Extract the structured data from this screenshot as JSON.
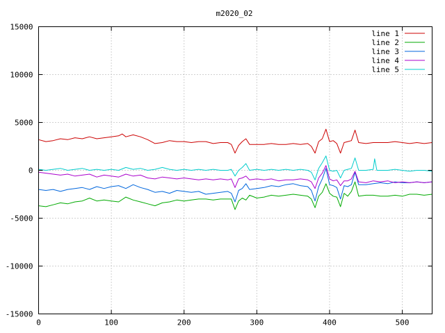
{
  "chart_data": {
    "type": "line",
    "title": "m2020_02",
    "xlabel": "",
    "ylabel": "",
    "xlim": [
      0,
      541
    ],
    "ylim": [
      -15000,
      15000
    ],
    "grid": true,
    "legend_position": "top-right",
    "x_ticks": [
      0,
      100,
      200,
      300,
      400,
      500
    ],
    "y_ticks": [
      -15000,
      -10000,
      -5000,
      0,
      5000,
      10000,
      15000
    ],
    "x_tick_labels": [
      "0",
      "100",
      "200",
      "300",
      "400",
      "500"
    ],
    "y_tick_labels": [
      "-15000",
      "-10000",
      "-5000",
      "0",
      "5000",
      "10000",
      "15000"
    ],
    "series": [
      {
        "name": "line 1",
        "color": "#cc0000",
        "x": [
          0,
          10,
          20,
          30,
          40,
          50,
          60,
          70,
          80,
          90,
          100,
          110,
          115,
          120,
          130,
          140,
          150,
          160,
          170,
          180,
          190,
          200,
          210,
          220,
          230,
          240,
          250,
          260,
          265,
          270,
          275,
          280,
          285,
          290,
          300,
          310,
          320,
          330,
          340,
          350,
          360,
          370,
          375,
          380,
          385,
          390,
          395,
          400,
          405,
          410,
          415,
          420,
          425,
          430,
          435,
          440,
          450,
          460,
          470,
          480,
          490,
          500,
          510,
          520,
          530,
          541
        ],
        "values": [
          3200,
          3000,
          3100,
          3300,
          3200,
          3400,
          3300,
          3500,
          3300,
          3400,
          3500,
          3600,
          3800,
          3500,
          3700,
          3500,
          3200,
          2800,
          2900,
          3100,
          3000,
          3000,
          2900,
          3000,
          3000,
          2800,
          2900,
          2900,
          2700,
          1800,
          2600,
          3000,
          3300,
          2700,
          2700,
          2700,
          2800,
          2700,
          2700,
          2800,
          2700,
          2800,
          2500,
          1800,
          3000,
          3300,
          4300,
          3000,
          3100,
          2800,
          1800,
          2900,
          3000,
          3100,
          4200,
          2900,
          2800,
          2900,
          2900,
          2900,
          3000,
          2900,
          2800,
          2900,
          2800,
          2900
        ]
      },
      {
        "name": "line 2",
        "color": "#00aa00",
        "x": [
          0,
          10,
          20,
          30,
          40,
          50,
          60,
          70,
          80,
          90,
          100,
          110,
          120,
          130,
          140,
          150,
          160,
          170,
          180,
          190,
          200,
          210,
          220,
          230,
          240,
          250,
          260,
          265,
          270,
          275,
          280,
          285,
          290,
          300,
          310,
          320,
          330,
          340,
          350,
          360,
          370,
          375,
          380,
          385,
          390,
          395,
          400,
          405,
          410,
          415,
          420,
          425,
          430,
          435,
          440,
          450,
          460,
          470,
          480,
          490,
          500,
          510,
          520,
          530,
          541
        ],
        "values": [
          -3700,
          -3800,
          -3600,
          -3400,
          -3500,
          -3300,
          -3200,
          -2900,
          -3200,
          -3100,
          -3200,
          -3300,
          -2800,
          -3100,
          -3300,
          -3500,
          -3700,
          -3400,
          -3300,
          -3100,
          -3200,
          -3100,
          -3000,
          -3000,
          -3100,
          -3000,
          -3000,
          -3000,
          -4100,
          -3200,
          -2900,
          -3100,
          -2600,
          -2900,
          -2800,
          -2600,
          -2700,
          -2600,
          -2500,
          -2600,
          -2700,
          -3000,
          -3900,
          -2700,
          -2300,
          -1400,
          -2400,
          -2700,
          -2800,
          -3800,
          -2400,
          -2700,
          -2200,
          -1200,
          -2700,
          -2600,
          -2600,
          -2700,
          -2700,
          -2600,
          -2700,
          -2500,
          -2500,
          -2600,
          -2500
        ]
      },
      {
        "name": "line 3",
        "color": "#0066dd",
        "x": [
          0,
          10,
          20,
          30,
          40,
          50,
          60,
          70,
          80,
          90,
          100,
          110,
          120,
          130,
          140,
          150,
          160,
          170,
          180,
          190,
          200,
          210,
          220,
          230,
          240,
          250,
          260,
          265,
          270,
          275,
          280,
          285,
          290,
          300,
          310,
          320,
          330,
          340,
          350,
          360,
          370,
          375,
          380,
          385,
          390,
          395,
          400,
          405,
          410,
          415,
          420,
          425,
          430,
          435,
          440,
          450,
          460,
          470,
          480,
          490,
          500,
          510,
          520,
          530,
          541
        ],
        "values": [
          -2000,
          -2100,
          -2000,
          -2200,
          -2000,
          -1900,
          -1800,
          -2000,
          -1700,
          -1900,
          -1700,
          -1600,
          -1900,
          -1500,
          -1800,
          -2000,
          -2300,
          -2200,
          -2400,
          -2100,
          -2200,
          -2300,
          -2200,
          -2500,
          -2400,
          -2300,
          -2200,
          -2400,
          -3300,
          -2100,
          -1900,
          -1400,
          -2000,
          -1900,
          -1800,
          -1600,
          -1700,
          -1500,
          -1400,
          -1600,
          -1700,
          -2100,
          -3200,
          -1700,
          -900,
          200,
          -1500,
          -1600,
          -1800,
          -3000,
          -1600,
          -1700,
          -1500,
          -200,
          -1500,
          -1500,
          -1400,
          -1300,
          -1400,
          -1200,
          -1300,
          -1300,
          -1200,
          -1300,
          -1200
        ]
      },
      {
        "name": "line 4",
        "color": "#aa00cc",
        "x": [
          0,
          10,
          20,
          30,
          40,
          50,
          60,
          70,
          80,
          90,
          100,
          110,
          120,
          130,
          140,
          150,
          160,
          170,
          180,
          190,
          200,
          210,
          220,
          230,
          240,
          250,
          260,
          265,
          270,
          275,
          280,
          285,
          290,
          300,
          310,
          320,
          330,
          340,
          350,
          360,
          370,
          375,
          380,
          385,
          390,
          395,
          400,
          405,
          410,
          415,
          420,
          425,
          430,
          435,
          440,
          450,
          460,
          470,
          480,
          490,
          500,
          510,
          520,
          530,
          541
        ],
        "values": [
          -200,
          -300,
          -400,
          -500,
          -400,
          -600,
          -500,
          -400,
          -700,
          -500,
          -600,
          -700,
          -400,
          -600,
          -500,
          -800,
          -900,
          -700,
          -800,
          -900,
          -800,
          -900,
          -1000,
          -900,
          -1000,
          -900,
          -1000,
          -900,
          -1800,
          -900,
          -800,
          -600,
          -1000,
          -900,
          -1000,
          -900,
          -1100,
          -1000,
          -1000,
          -900,
          -1000,
          -1200,
          -1900,
          -800,
          -300,
          500,
          -900,
          -1100,
          -1000,
          -1600,
          -1100,
          -1100,
          -900,
          -100,
          -1200,
          -1300,
          -1100,
          -1200,
          -1100,
          -1300,
          -1200,
          -1300,
          -1200,
          -1300,
          -1200
        ]
      },
      {
        "name": "line 5",
        "color": "#00cccc",
        "x": [
          0,
          10,
          20,
          30,
          40,
          50,
          60,
          70,
          80,
          90,
          100,
          110,
          120,
          130,
          140,
          150,
          160,
          170,
          180,
          190,
          200,
          210,
          220,
          230,
          240,
          250,
          260,
          265,
          270,
          275,
          280,
          285,
          290,
          300,
          310,
          320,
          330,
          340,
          350,
          360,
          370,
          375,
          380,
          385,
          390,
          395,
          400,
          405,
          410,
          415,
          420,
          425,
          430,
          435,
          440,
          450,
          460,
          462,
          465,
          470,
          480,
          490,
          500,
          510,
          520,
          530,
          541
        ],
        "values": [
          100,
          0,
          100,
          200,
          0,
          100,
          200,
          0,
          100,
          0,
          100,
          0,
          300,
          100,
          200,
          0,
          100,
          300,
          100,
          0,
          100,
          0,
          100,
          0,
          100,
          0,
          0,
          100,
          -600,
          0,
          300,
          700,
          0,
          100,
          0,
          100,
          0,
          100,
          0,
          100,
          0,
          -200,
          -1000,
          200,
          800,
          1500,
          0,
          -100,
          0,
          -800,
          0,
          100,
          200,
          1300,
          0,
          0,
          100,
          1200,
          0,
          0,
          0,
          100,
          0,
          -100,
          0,
          0,
          -100
        ]
      }
    ]
  }
}
